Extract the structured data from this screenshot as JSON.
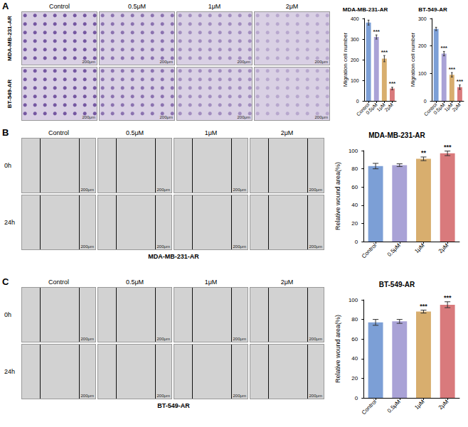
{
  "figure": {
    "panels": [
      {
        "letter": "A",
        "columns": [
          "Control",
          "0.5μM",
          "1μM",
          "2μM"
        ],
        "rows": [
          "MDA-MB-231-AR",
          "BT-549-AR"
        ],
        "scale_bar": "200μm"
      },
      {
        "letter": "B",
        "columns": [
          "Control",
          "0.5μM",
          "1μM",
          "2μM"
        ],
        "rows": [
          "0h",
          "24h"
        ],
        "caption": "MDA-MB-231-AR",
        "scale_bar": "200μm"
      },
      {
        "letter": "C",
        "columns": [
          "Control",
          "0.5μM",
          "1μM",
          "2μM"
        ],
        "rows": [
          "0h",
          "24h"
        ],
        "caption": "BT-549-AR",
        "scale_bar": "200μm"
      }
    ]
  },
  "chart_data": [
    {
      "type": "bar",
      "title": "MDA-MB-231-AR",
      "y_label": "Migration cell number",
      "categories": [
        "Control",
        "0.5μM",
        "1μM",
        "2μM"
      ],
      "values": [
        380,
        310,
        205,
        60
      ],
      "errors": [
        12,
        10,
        15,
        6
      ],
      "annotations": [
        null,
        "***",
        "***",
        "***"
      ],
      "colors": [
        "#7C9FD6",
        "#A9A2D6",
        "#D8AE6E",
        "#D97A7C"
      ],
      "ylim": [
        0,
        400
      ],
      "yticks": [
        0,
        100,
        200,
        300,
        400
      ],
      "grid": false
    },
    {
      "type": "bar",
      "title": "BT-549-AR",
      "y_label": "Migration cell number",
      "categories": [
        "Control",
        "0.5μM",
        "1μM",
        "2μM"
      ],
      "values": [
        262,
        172,
        95,
        50
      ],
      "errors": [
        6,
        8,
        8,
        8
      ],
      "annotations": [
        null,
        "***",
        "***",
        "***"
      ],
      "colors": [
        "#7C9FD6",
        "#A9A2D6",
        "#D8AE6E",
        "#D97A7C"
      ],
      "ylim": [
        0,
        300
      ],
      "yticks": [
        0,
        100,
        200,
        300
      ],
      "grid": false
    },
    {
      "type": "bar",
      "title": "MDA-MB-231-AR",
      "y_label": "Relative wound area(%)",
      "categories": [
        "Control",
        "0.5μM",
        "1μM",
        "2μM"
      ],
      "values": [
        83,
        84,
        91,
        97
      ],
      "errors": [
        3,
        1.5,
        2,
        2.5
      ],
      "annotations": [
        null,
        null,
        "**",
        "***"
      ],
      "colors": [
        "#7C9FD6",
        "#A9A2D6",
        "#D8AE6E",
        "#D97A7C"
      ],
      "ylim": [
        0,
        100
      ],
      "yticks": [
        0,
        20,
        40,
        60,
        80,
        100
      ],
      "grid": false
    },
    {
      "type": "bar",
      "title": "BT-549-AR",
      "y_label": "Relative wound area(%)",
      "categories": [
        "Control",
        "0.5μM",
        "1μM",
        "2μM"
      ],
      "values": [
        77,
        78,
        88,
        95
      ],
      "errors": [
        3,
        2,
        1.5,
        3
      ],
      "annotations": [
        null,
        null,
        "***",
        "***"
      ],
      "colors": [
        "#7C9FD6",
        "#A9A2D6",
        "#D8AE6E",
        "#D97A7C"
      ],
      "ylim": [
        0,
        100
      ],
      "yticks": [
        0,
        20,
        40,
        60,
        80,
        100
      ],
      "grid": false
    }
  ]
}
